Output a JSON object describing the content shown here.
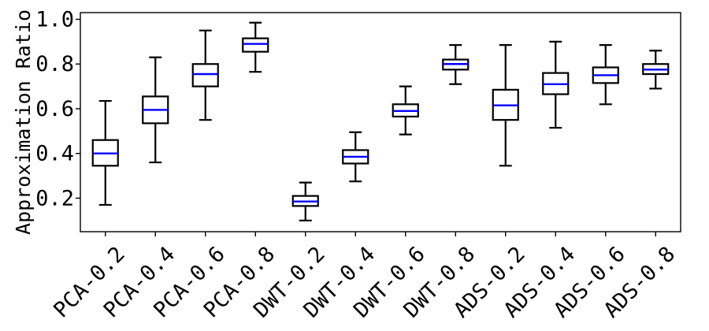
{
  "chart_data": {
    "type": "box",
    "title": "",
    "xlabel": "",
    "ylabel": "Approximation Ratio",
    "ylim": [
      0.05,
      1.03
    ],
    "yticks": [
      "0.2",
      "0.4",
      "0.6",
      "0.8",
      "1.0"
    ],
    "grid": false,
    "categories": [
      "PCA-0.2",
      "PCA-0.4",
      "PCA-0.6",
      "PCA-0.8",
      "DWT-0.2",
      "DWT-0.4",
      "DWT-0.6",
      "DWT-0.8",
      "ADS-0.2",
      "ADS-0.4",
      "ADS-0.6",
      "ADS-0.8"
    ],
    "boxes": [
      {
        "whislo": 0.17,
        "q1": 0.345,
        "med": 0.4,
        "q3": 0.46,
        "whishi": 0.635
      },
      {
        "whislo": 0.36,
        "q1": 0.535,
        "med": 0.595,
        "q3": 0.655,
        "whishi": 0.83
      },
      {
        "whislo": 0.55,
        "q1": 0.7,
        "med": 0.755,
        "q3": 0.8,
        "whishi": 0.95
      },
      {
        "whislo": 0.765,
        "q1": 0.855,
        "med": 0.89,
        "q3": 0.915,
        "whishi": 0.985
      },
      {
        "whislo": 0.1,
        "q1": 0.165,
        "med": 0.185,
        "q3": 0.21,
        "whishi": 0.27
      },
      {
        "whislo": 0.275,
        "q1": 0.355,
        "med": 0.385,
        "q3": 0.415,
        "whishi": 0.495
      },
      {
        "whislo": 0.485,
        "q1": 0.565,
        "med": 0.59,
        "q3": 0.62,
        "whishi": 0.7
      },
      {
        "whislo": 0.71,
        "q1": 0.775,
        "med": 0.8,
        "q3": 0.82,
        "whishi": 0.885
      },
      {
        "whislo": 0.345,
        "q1": 0.55,
        "med": 0.615,
        "q3": 0.685,
        "whishi": 0.885
      },
      {
        "whislo": 0.515,
        "q1": 0.665,
        "med": 0.71,
        "q3": 0.76,
        "whishi": 0.9
      },
      {
        "whislo": 0.62,
        "q1": 0.715,
        "med": 0.75,
        "q3": 0.785,
        "whishi": 0.885
      },
      {
        "whislo": 0.69,
        "q1": 0.755,
        "med": 0.775,
        "q3": 0.8,
        "whishi": 0.86
      }
    ],
    "colors": {
      "box": "#000000",
      "median": "#0000ff",
      "whisker": "#000000"
    }
  }
}
